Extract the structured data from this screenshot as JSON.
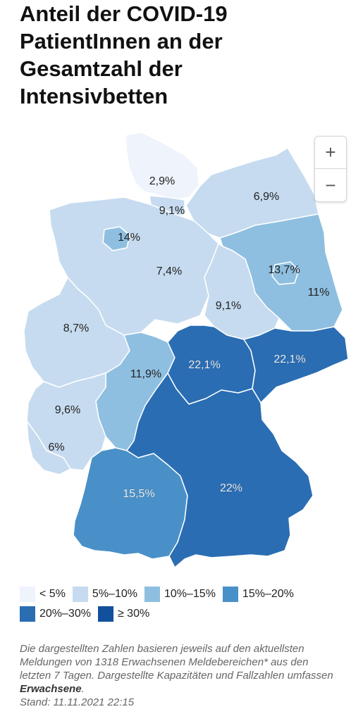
{
  "title": "Anteil der COVID-19 PatientInnen an der Gesamtzahl der Intensivbetten",
  "zoom": {
    "in_label": "+",
    "out_label": "−"
  },
  "colors": {
    "lt5": "#eef3fc",
    "c5_10": "#c6dbef",
    "c10_15": "#8ebfe0",
    "c15_20": "#4a90c8",
    "c20_30": "#2a6db3",
    "ge30": "#12509e",
    "border": "#ffffff"
  },
  "regions": [
    {
      "name": "Schleswig-Holstein",
      "label": "2,9%",
      "class": "lt5"
    },
    {
      "name": "Hamburg",
      "label": "9,1%",
      "class": "c5_10"
    },
    {
      "name": "Mecklenburg-Vorpommern",
      "label": "6,9%",
      "class": "c5_10"
    },
    {
      "name": "Bremen",
      "label": "14%",
      "class": "c10_15"
    },
    {
      "name": "Niedersachsen",
      "label": "7,4%",
      "class": "c5_10"
    },
    {
      "name": "Berlin",
      "label": "13,7%",
      "class": "c10_15"
    },
    {
      "name": "Brandenburg",
      "label": "11%",
      "class": "c10_15"
    },
    {
      "name": "Sachsen-Anhalt",
      "label": "9,1%",
      "class": "c5_10"
    },
    {
      "name": "Nordrhein-Westfalen",
      "label": "8,7%",
      "class": "c5_10"
    },
    {
      "name": "Hessen",
      "label": "11,9%",
      "class": "c10_15"
    },
    {
      "name": "Thüringen",
      "label": "22,1%",
      "class": "c20_30"
    },
    {
      "name": "Sachsen",
      "label": "22,1%",
      "class": "c20_30"
    },
    {
      "name": "Rheinland-Pfalz",
      "label": "9,6%",
      "class": "c5_10"
    },
    {
      "name": "Saarland",
      "label": "6%",
      "class": "c5_10"
    },
    {
      "name": "Baden-Württemberg",
      "label": "15,5%",
      "class": "c15_20"
    },
    {
      "name": "Bayern",
      "label": "22%",
      "class": "c20_30"
    }
  ],
  "legend": [
    {
      "label": "< 5%",
      "color": "#eef3fc"
    },
    {
      "label": "5%–10%",
      "color": "#c6dbef"
    },
    {
      "label": "10%–15%",
      "color": "#8ebfe0"
    },
    {
      "label": "15%–20%",
      "color": "#4a90c8"
    },
    {
      "label": "20%–30%",
      "color": "#2a6db3"
    },
    {
      "label": "≥ 30%",
      "color": "#12509e"
    }
  ],
  "footnote": {
    "text_1": "Die dargestellten Zahlen basieren jeweils auf den aktuellsten Meldungen von 1318 Erwachsenen Meldebereichen* aus den letzten 7 Tagen. Dargestellte Kapazitäten und Fallzahlen umfassen ",
    "emphasis": "Erwachsene",
    "text_2": ".",
    "stand": "Stand: 11.11.2021 22:15"
  }
}
